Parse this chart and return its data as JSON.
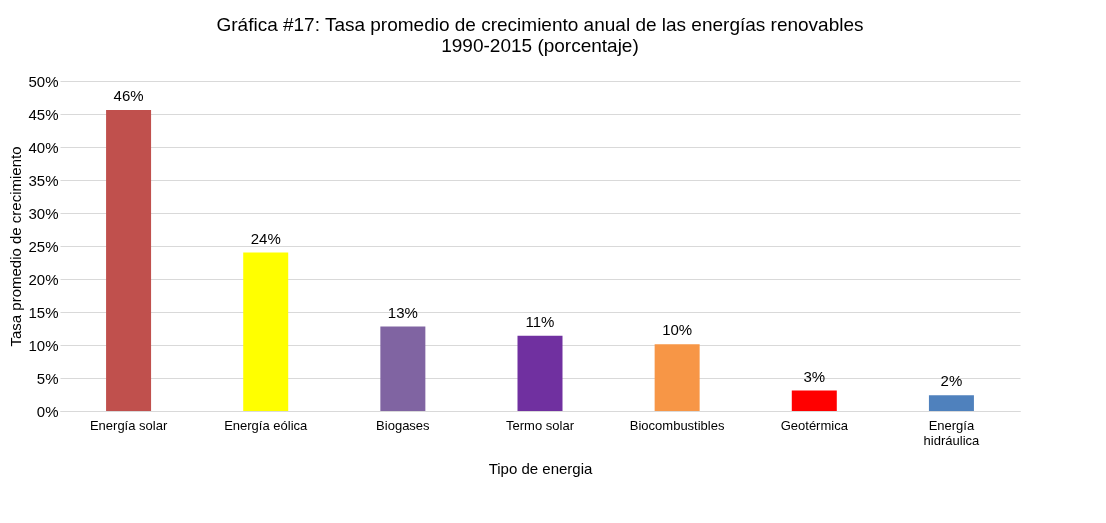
{
  "chart_data": {
    "type": "bar",
    "title": "Gráfica #17: Tasa promedio de crecimiento anual de las energías renovables\n1990-2015 (porcentaje)",
    "xlabel": "Tipo de energia",
    "ylabel": "Tasa promedio de crecimiento",
    "categories": [
      "Energía solar",
      "Energía eólica",
      "Biogases",
      "Termo solar",
      "Biocombustibles",
      "Geotérmica",
      "Energía hidráulica"
    ],
    "values": [
      45.6,
      24.0,
      12.8,
      11.4,
      10.1,
      3.1,
      2.4
    ],
    "value_labels": [
      "46%",
      "24%",
      "13%",
      "11%",
      "10%",
      "3%",
      "2%"
    ],
    "colors": [
      "#c0504d",
      "#ffff00",
      "#8064a2",
      "#7030a0",
      "#f79646",
      "#ff0000",
      "#4f81bd"
    ],
    "ylim": [
      0,
      50
    ],
    "yticks": [
      {
        "value": 0,
        "label": "0%"
      },
      {
        "value": 5,
        "label": "5%"
      },
      {
        "value": 10,
        "label": "10%"
      },
      {
        "value": 15,
        "label": "15%"
      },
      {
        "value": 20,
        "label": "20%"
      },
      {
        "value": 25,
        "label": "25%"
      },
      {
        "value": 30,
        "label": "30%"
      },
      {
        "value": 35,
        "label": "35%"
      },
      {
        "value": 40,
        "label": "40%"
      },
      {
        "value": 45,
        "label": "45%"
      },
      {
        "value": 50,
        "label": "50%"
      }
    ],
    "grid": "y"
  }
}
